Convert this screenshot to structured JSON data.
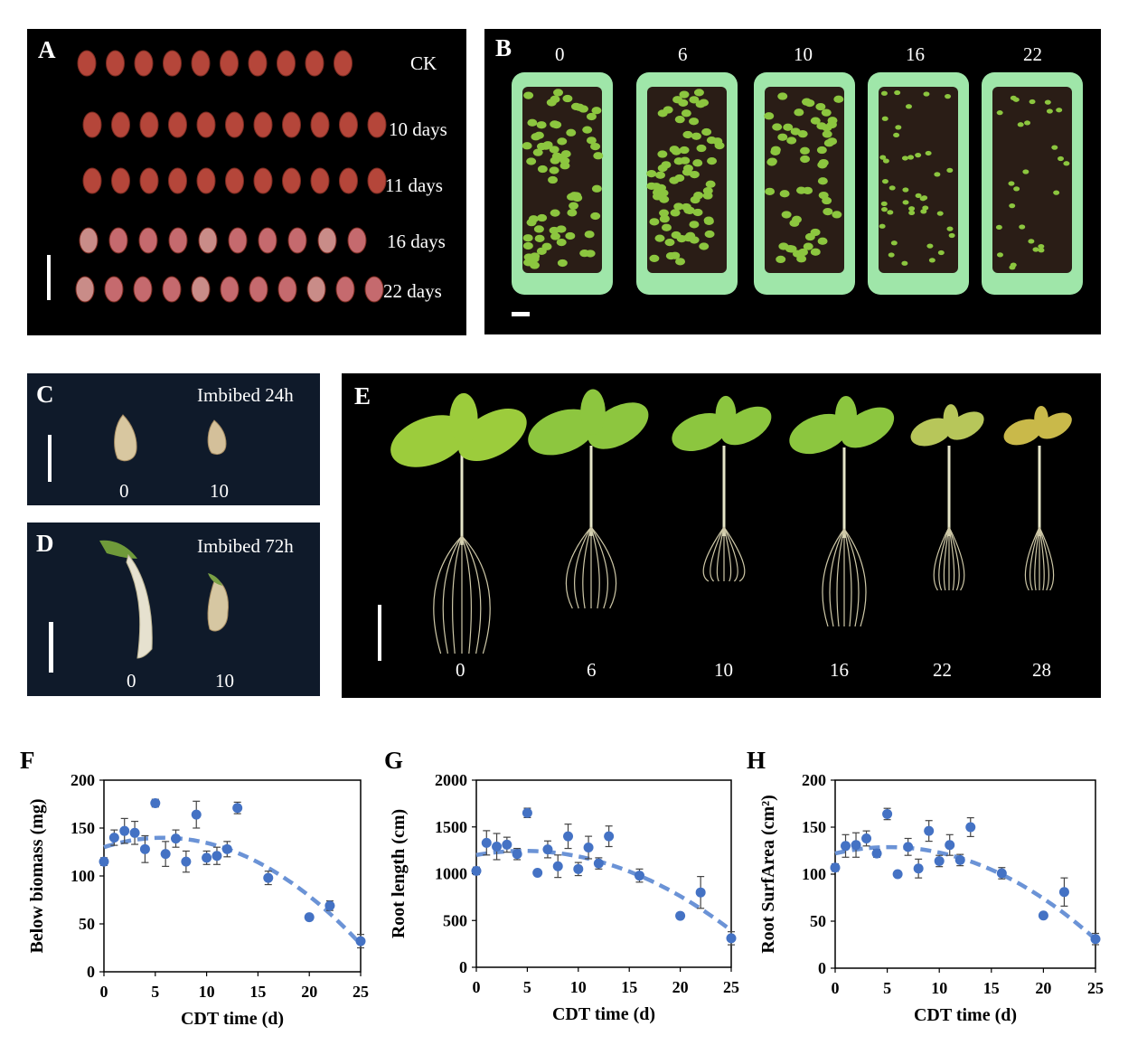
{
  "panel_a": {
    "label": "A",
    "rows": [
      "CK",
      "10 days",
      "11 days",
      "16 days",
      "22 days"
    ]
  },
  "panel_b": {
    "label": "B",
    "columns": [
      "0",
      "6",
      "10",
      "16",
      "22"
    ]
  },
  "panel_c": {
    "label": "C",
    "caption": "Imbibed 24h",
    "sample_labels": [
      "0",
      "10"
    ]
  },
  "panel_d": {
    "label": "D",
    "caption": "Imbibed 72h",
    "sample_labels": [
      "0",
      "10"
    ]
  },
  "panel_e": {
    "label": "E",
    "plant_labels": [
      "0",
      "6",
      "10",
      "16",
      "22",
      "28"
    ]
  },
  "colors": {
    "seed": "#b5463a",
    "tray": "#9fe6a9",
    "soil": "#2a1d16",
    "leaf": "#8cc63f",
    "marker": "#4472c4",
    "fit": "#6b93d6"
  },
  "chart_data": [
    {
      "panel": "F",
      "type": "scatter",
      "xlabel": "CDT time (d)",
      "ylabel": "Below biomass (mg)",
      "xlim": [
        0,
        25
      ],
      "ylim": [
        0,
        200
      ],
      "xticks": [
        "0",
        "5",
        "10",
        "15",
        "20",
        "25"
      ],
      "yticks": [
        "0",
        "50",
        "100",
        "150",
        "200"
      ],
      "x": [
        0,
        1,
        2,
        3,
        4,
        5,
        6,
        7,
        8,
        9,
        10,
        11,
        12,
        13,
        16,
        20,
        22,
        25
      ],
      "y": [
        115,
        140,
        147,
        145,
        128,
        176,
        123,
        139,
        115,
        164,
        119,
        121,
        128,
        171,
        98,
        57,
        69,
        32
      ],
      "err": [
        4,
        8,
        13,
        12,
        14,
        4,
        13,
        9,
        11,
        14,
        7,
        9,
        8,
        6,
        7,
        3,
        5,
        7
      ],
      "fit": {
        "type": "quadratic",
        "coef": [
          130,
          3.45,
          -0.3
        ]
      }
    },
    {
      "panel": "G",
      "type": "scatter",
      "xlabel": "CDT time (d)",
      "ylabel": "Root length (cm)",
      "xlim": [
        0,
        25
      ],
      "ylim": [
        0,
        2000
      ],
      "xticks": [
        "0",
        "5",
        "10",
        "15",
        "20",
        "25"
      ],
      "yticks": [
        "0",
        "500",
        "1000",
        "1500",
        "2000"
      ],
      "x": [
        0,
        1,
        2,
        3,
        4,
        5,
        6,
        7,
        8,
        9,
        10,
        11,
        12,
        13,
        16,
        20,
        22,
        25
      ],
      "y": [
        1030,
        1330,
        1290,
        1310,
        1210,
        1650,
        1010,
        1260,
        1080,
        1400,
        1050,
        1280,
        1110,
        1400,
        980,
        550,
        800,
        310
      ],
      "err": [
        40,
        130,
        140,
        80,
        60,
        50,
        30,
        90,
        120,
        130,
        70,
        120,
        60,
        110,
        70,
        30,
        170,
        70
      ],
      "fit": {
        "type": "quadratic",
        "coef": [
          1200,
          19,
          -2.05
        ]
      }
    },
    {
      "panel": "H",
      "type": "scatter",
      "xlabel": "CDT time (d)",
      "ylabel": "Root SurfArea (cm²)",
      "xlim": [
        0,
        25
      ],
      "ylim": [
        0,
        200
      ],
      "xticks": [
        "0",
        "5",
        "10",
        "15",
        "20",
        "25"
      ],
      "yticks": [
        "0",
        "50",
        "100",
        "150",
        "200"
      ],
      "x": [
        0,
        1,
        2,
        3,
        4,
        5,
        6,
        7,
        8,
        9,
        10,
        11,
        12,
        13,
        16,
        20,
        22,
        25
      ],
      "y": [
        107,
        130,
        131,
        138,
        122,
        164,
        100,
        129,
        106,
        146,
        114,
        131,
        115,
        150,
        101,
        56,
        81,
        31
      ],
      "err": [
        4,
        12,
        13,
        8,
        4,
        6,
        3,
        9,
        10,
        11,
        6,
        11,
        6,
        10,
        6,
        3,
        15,
        6
      ],
      "fit": {
        "type": "quadratic",
        "coef": [
          122,
          2.6,
          -0.25
        ]
      }
    }
  ]
}
